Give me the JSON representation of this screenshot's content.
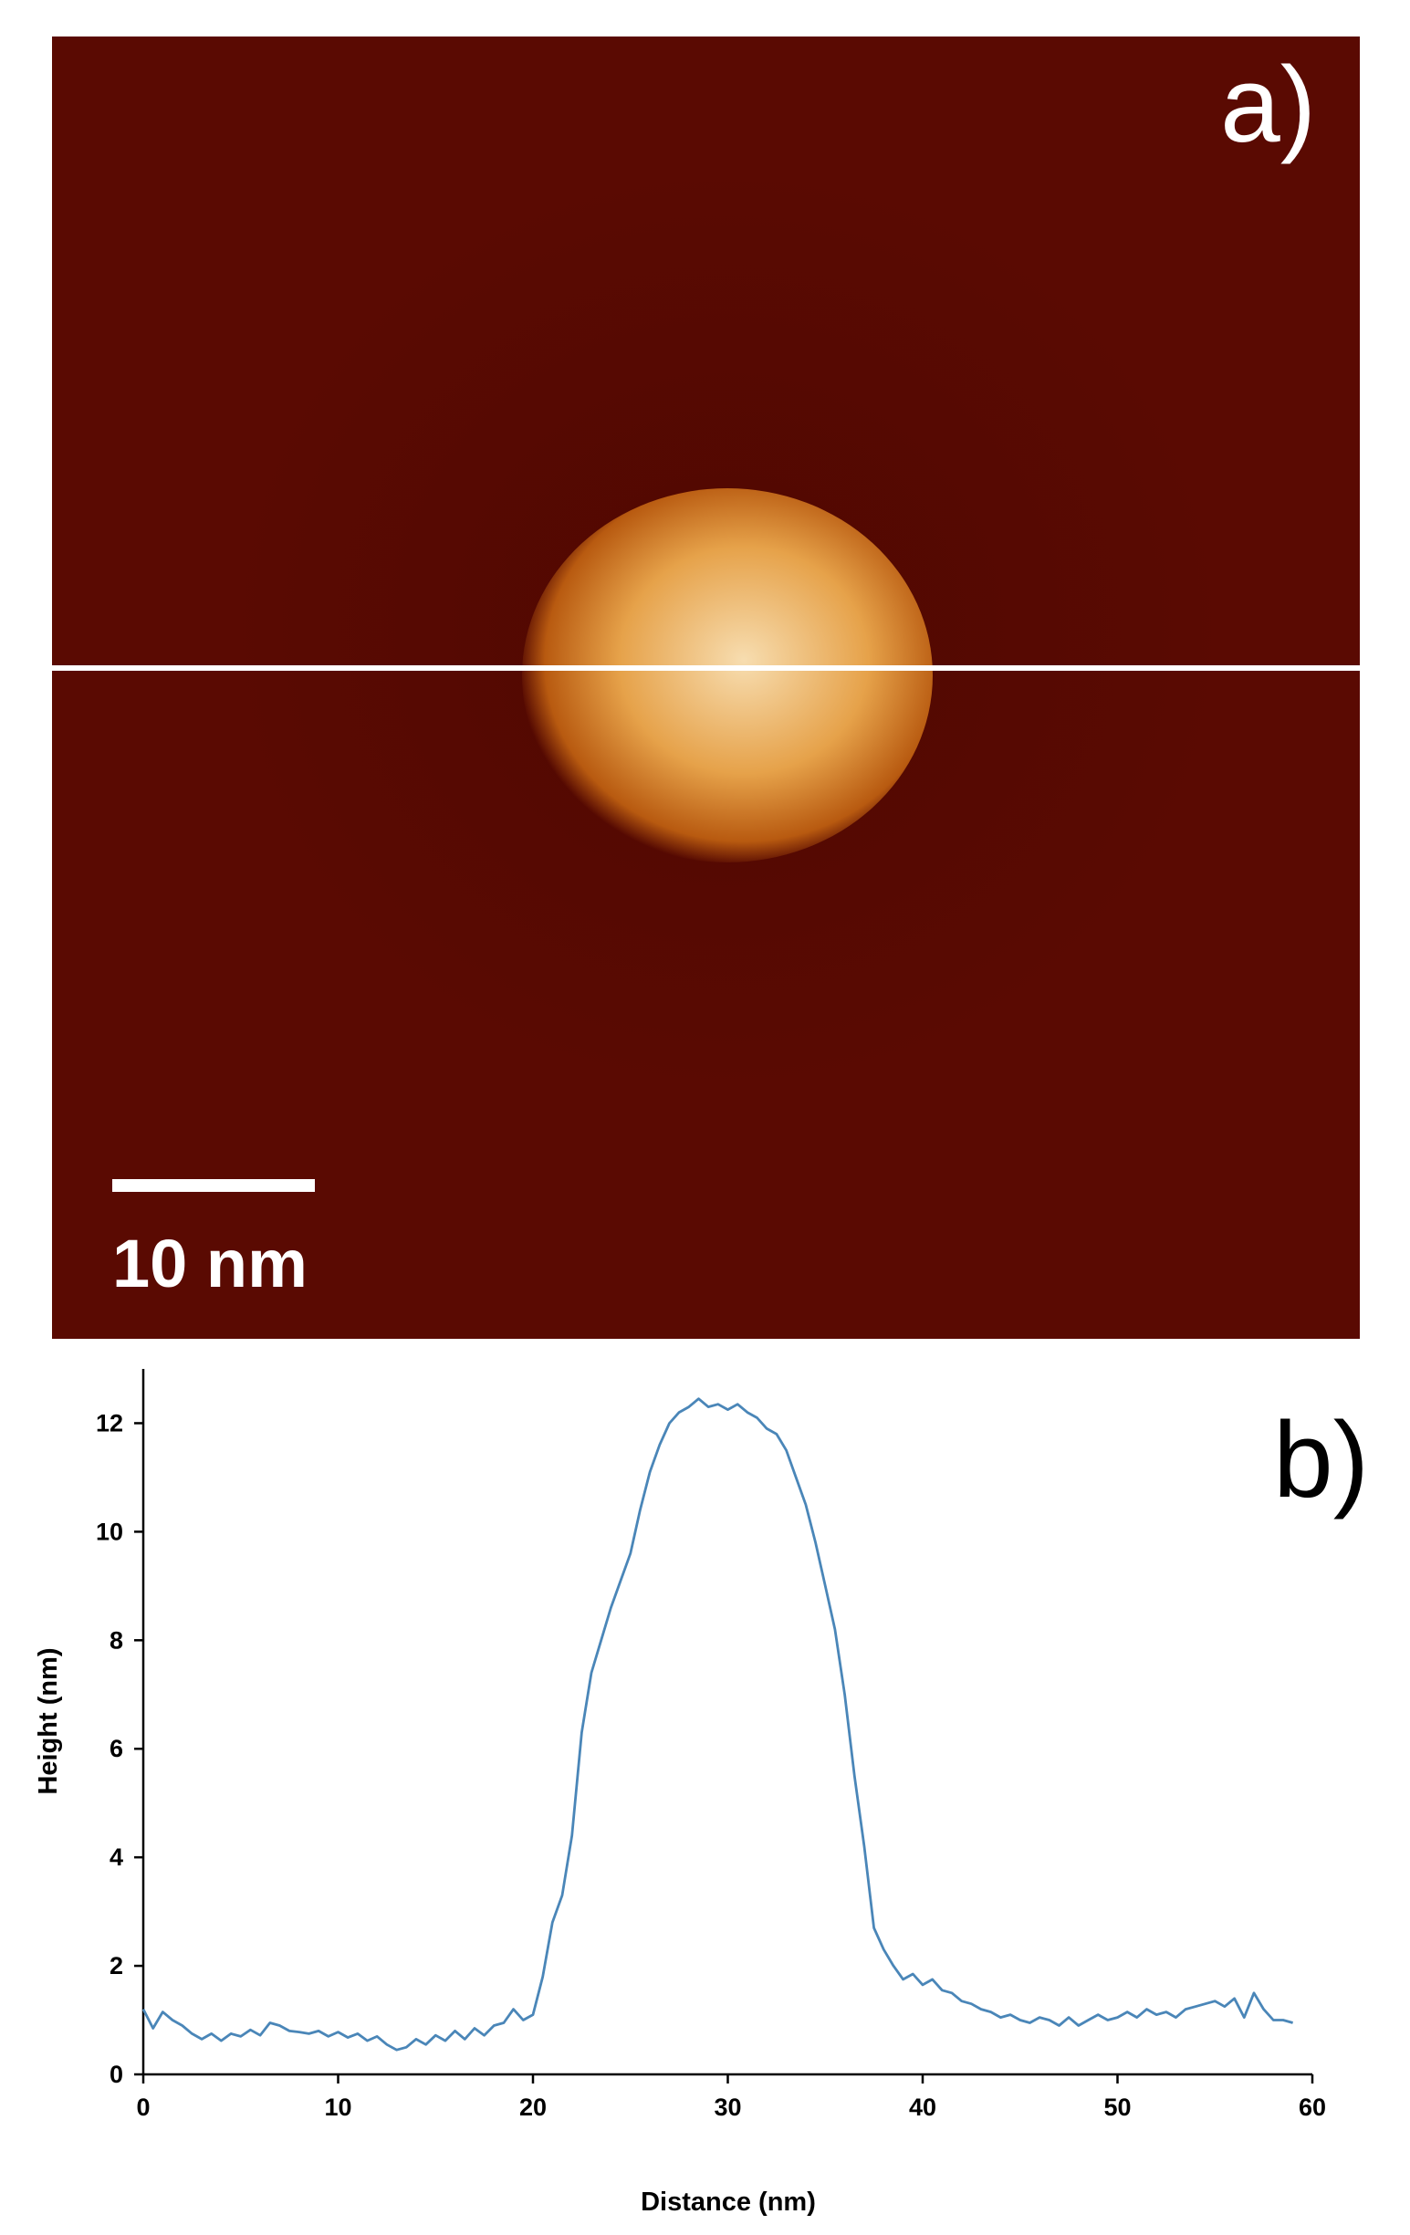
{
  "panel_a": {
    "label": "a)",
    "scale_bar_label": "10 nm",
    "colors": {
      "background": "#5a0a02",
      "background_dark": "#480600",
      "particle_core": "#f7ddb0",
      "particle_mid": "#e6a24a",
      "particle_edge": "#b85a10",
      "line_profile": "#ffffff"
    }
  },
  "panel_b": {
    "label": "b)"
  },
  "chart_data": {
    "type": "line",
    "xlabel": "Distance (nm)",
    "ylabel": "Height (nm)",
    "xlim": [
      0,
      60
    ],
    "ylim": [
      0,
      13
    ],
    "xticks": [
      0,
      10,
      20,
      30,
      40,
      50,
      60
    ],
    "yticks": [
      0,
      2,
      4,
      6,
      8,
      10,
      12
    ],
    "grid": false,
    "line_color": "#4a86b8",
    "series": [
      {
        "x": [
          0,
          0.5,
          1,
          1.5,
          2,
          2.5,
          3,
          3.5,
          4,
          4.5,
          5,
          5.5,
          6,
          6.5,
          7,
          7.5,
          8,
          8.5,
          9,
          9.5,
          10,
          10.5,
          11,
          11.5,
          12,
          12.5,
          13,
          13.5,
          14,
          14.5,
          15,
          15.5,
          16,
          16.5,
          17,
          17.5,
          18,
          18.5,
          19,
          19.5,
          20,
          20.5,
          21,
          21.5,
          22,
          22.5,
          23,
          23.5,
          24,
          24.5,
          25,
          25.5,
          26,
          26.5,
          27,
          27.5,
          28,
          28.5,
          29,
          29.5,
          30,
          30.5,
          31,
          31.5,
          32,
          32.5,
          33,
          33.5,
          34,
          34.5,
          35,
          35.5,
          36,
          36.5,
          37,
          37.5,
          38,
          38.5,
          39,
          39.5,
          40,
          40.5,
          41,
          41.5,
          42,
          42.5,
          43,
          43.5,
          44,
          44.5,
          45,
          45.5,
          46,
          46.5,
          47,
          47.5,
          48,
          48.5,
          49,
          49.5,
          50,
          50.5,
          51,
          51.5,
          52,
          52.5,
          53,
          53.5,
          54,
          54.5,
          55,
          55.5,
          56,
          56.5,
          57,
          57.5,
          58,
          58.5,
          59
        ],
        "y": [
          1.2,
          0.85,
          1.15,
          1.0,
          0.9,
          0.75,
          0.65,
          0.75,
          0.62,
          0.75,
          0.7,
          0.82,
          0.72,
          0.95,
          0.9,
          0.8,
          0.78,
          0.75,
          0.8,
          0.7,
          0.78,
          0.68,
          0.75,
          0.62,
          0.7,
          0.55,
          0.45,
          0.5,
          0.65,
          0.55,
          0.72,
          0.62,
          0.8,
          0.65,
          0.85,
          0.72,
          0.9,
          0.95,
          1.2,
          1.0,
          1.1,
          1.8,
          2.8,
          3.3,
          4.4,
          6.3,
          7.4,
          8.0,
          8.6,
          9.1,
          9.6,
          10.4,
          11.1,
          11.6,
          12.0,
          12.2,
          12.3,
          12.45,
          12.3,
          12.35,
          12.25,
          12.35,
          12.2,
          12.1,
          11.9,
          11.8,
          11.5,
          11.0,
          10.5,
          9.8,
          9.0,
          8.2,
          7.0,
          5.5,
          4.2,
          2.7,
          2.3,
          2.0,
          1.75,
          1.85,
          1.65,
          1.75,
          1.55,
          1.5,
          1.35,
          1.3,
          1.2,
          1.15,
          1.05,
          1.1,
          1.0,
          0.95,
          1.05,
          1.0,
          0.9,
          1.05,
          0.9,
          1.0,
          1.1,
          1.0,
          1.05,
          1.15,
          1.05,
          1.2,
          1.1,
          1.15,
          1.05,
          1.2,
          1.25,
          1.3,
          1.35,
          1.25,
          1.4,
          1.05,
          1.5,
          1.2,
          1.0,
          1.0,
          0.95
        ]
      }
    ]
  }
}
